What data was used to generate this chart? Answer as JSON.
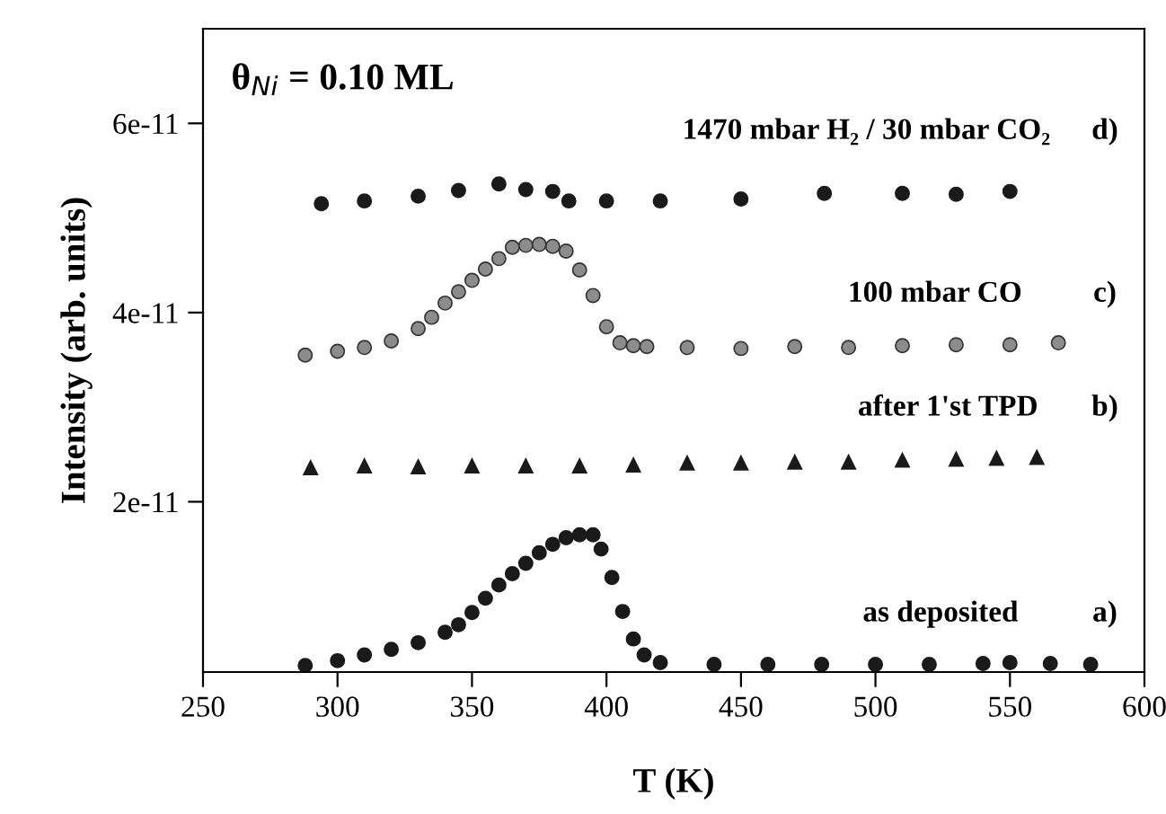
{
  "chart_data": {
    "type": "scatter",
    "xlabel": "T (K)",
    "ylabel": "Intensity (arb. units)",
    "xlim": [
      250,
      600
    ],
    "xticks": [
      250,
      300,
      350,
      400,
      450,
      500,
      550,
      600
    ],
    "ylim": [
      2e-12,
      7e-11
    ],
    "yticks": [
      2e-11,
      4e-11,
      6e-11
    ],
    "grid": false,
    "legend": false,
    "line_style": "none",
    "annotations": [
      "θ$_{Ni}$ = 0.10 ML",
      "d)",
      "c)",
      "b)",
      "a)"
    ],
    "series": [
      {
        "name": "1470 mbar H₂ / 30 mbar CO₂",
        "color": "#1a1a1a",
        "marker": "circle",
        "x": [
          294,
          310,
          330,
          345,
          360,
          370,
          380,
          386,
          400,
          420,
          450,
          481,
          510,
          530,
          550
        ],
        "values": [
          5.15e-11,
          5.18e-11,
          5.23e-11,
          5.29e-11,
          5.36e-11,
          5.3e-11,
          5.28e-11,
          5.18e-11,
          5.18e-11,
          5.18e-11,
          5.2e-11,
          5.26e-11,
          5.26e-11,
          5.25e-11,
          5.28e-11
        ]
      },
      {
        "name": "100 mbar CO",
        "color": "#8c8c8c",
        "marker": "circle",
        "x": [
          288,
          300,
          310,
          320,
          330,
          335,
          340,
          345,
          350,
          355,
          360,
          365,
          370,
          375,
          380,
          385,
          390,
          395,
          400,
          405,
          410,
          415,
          430,
          450,
          470,
          490,
          510,
          530,
          550,
          568
        ],
        "values": [
          3.55e-11,
          3.59e-11,
          3.63e-11,
          3.7e-11,
          3.83e-11,
          3.95e-11,
          4.1e-11,
          4.22e-11,
          4.34e-11,
          4.46e-11,
          4.57e-11,
          4.69e-11,
          4.71e-11,
          4.72e-11,
          4.7e-11,
          4.65e-11,
          4.45e-11,
          4.18e-11,
          3.85e-11,
          3.68e-11,
          3.65e-11,
          3.64e-11,
          3.63e-11,
          3.62e-11,
          3.64e-11,
          3.63e-11,
          3.65e-11,
          3.66e-11,
          3.66e-11,
          3.68e-11
        ]
      },
      {
        "name": "after 1'st TPD",
        "color": "#1a1a1a",
        "marker": "triangle",
        "x": [
          290,
          310,
          330,
          350,
          370,
          390,
          410,
          430,
          450,
          470,
          490,
          510,
          530,
          545,
          560
        ],
        "values": [
          2.36e-11,
          2.38e-11,
          2.37e-11,
          2.38e-11,
          2.38e-11,
          2.38e-11,
          2.39e-11,
          2.41e-11,
          2.41e-11,
          2.42e-11,
          2.42e-11,
          2.44e-11,
          2.45e-11,
          2.46e-11,
          2.47e-11
        ]
      },
      {
        "name": "as deposited",
        "color": "#1a1a1a",
        "marker": "circle",
        "x": [
          288,
          300,
          310,
          320,
          330,
          340,
          345,
          350,
          355,
          360,
          365,
          370,
          375,
          380,
          385,
          390,
          395,
          398,
          402,
          406,
          410,
          414,
          420,
          440,
          460,
          480,
          500,
          520,
          540,
          550,
          565,
          580
        ],
        "values": [
          2.7e-12,
          3.2e-12,
          3.8e-12,
          4.4e-12,
          5.1e-12,
          6.2e-12,
          7e-12,
          8.3e-12,
          9.8e-12,
          1.12e-11,
          1.24e-11,
          1.35e-11,
          1.46e-11,
          1.55e-11,
          1.62e-11,
          1.65e-11,
          1.65e-11,
          1.5e-11,
          1.2e-11,
          8.4e-12,
          5.5e-12,
          3.8e-12,
          3e-12,
          2.8e-12,
          2.8e-12,
          2.8e-12,
          2.8e-12,
          2.8e-12,
          2.9e-12,
          3e-12,
          2.9e-12,
          2.8e-12
        ]
      }
    ]
  }
}
